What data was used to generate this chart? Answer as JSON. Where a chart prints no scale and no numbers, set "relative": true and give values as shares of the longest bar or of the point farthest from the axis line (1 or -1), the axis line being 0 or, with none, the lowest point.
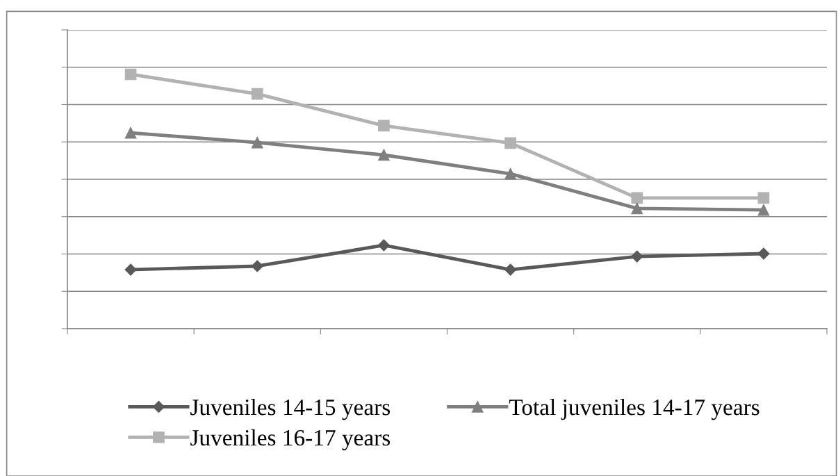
{
  "chart_data": {
    "type": "line",
    "relative": true,
    "categories": [
      null,
      null,
      null,
      null,
      null,
      null
    ],
    "series": [
      {
        "name": "Juveniles 14-15 years",
        "color": "#595959",
        "marker": "diamond",
        "values": [
          0.232,
          0.246,
          0.328,
          0.232,
          0.284,
          0.295
        ]
      },
      {
        "name": "Juveniles 16-17 years",
        "color": "#b2b2b2",
        "marker": "square",
        "values": [
          1,
          0.923,
          0.798,
          0.73,
          0.514,
          0.514
        ]
      },
      {
        "name": "Total juveniles 14-17 years",
        "color": "#7f7f7f",
        "marker": "triangle",
        "values": [
          0.77,
          0.732,
          0.683,
          0.609,
          0.473,
          0.467
        ]
      }
    ],
    "grid": "y",
    "legend": "bottom",
    "line_style": "solid"
  }
}
